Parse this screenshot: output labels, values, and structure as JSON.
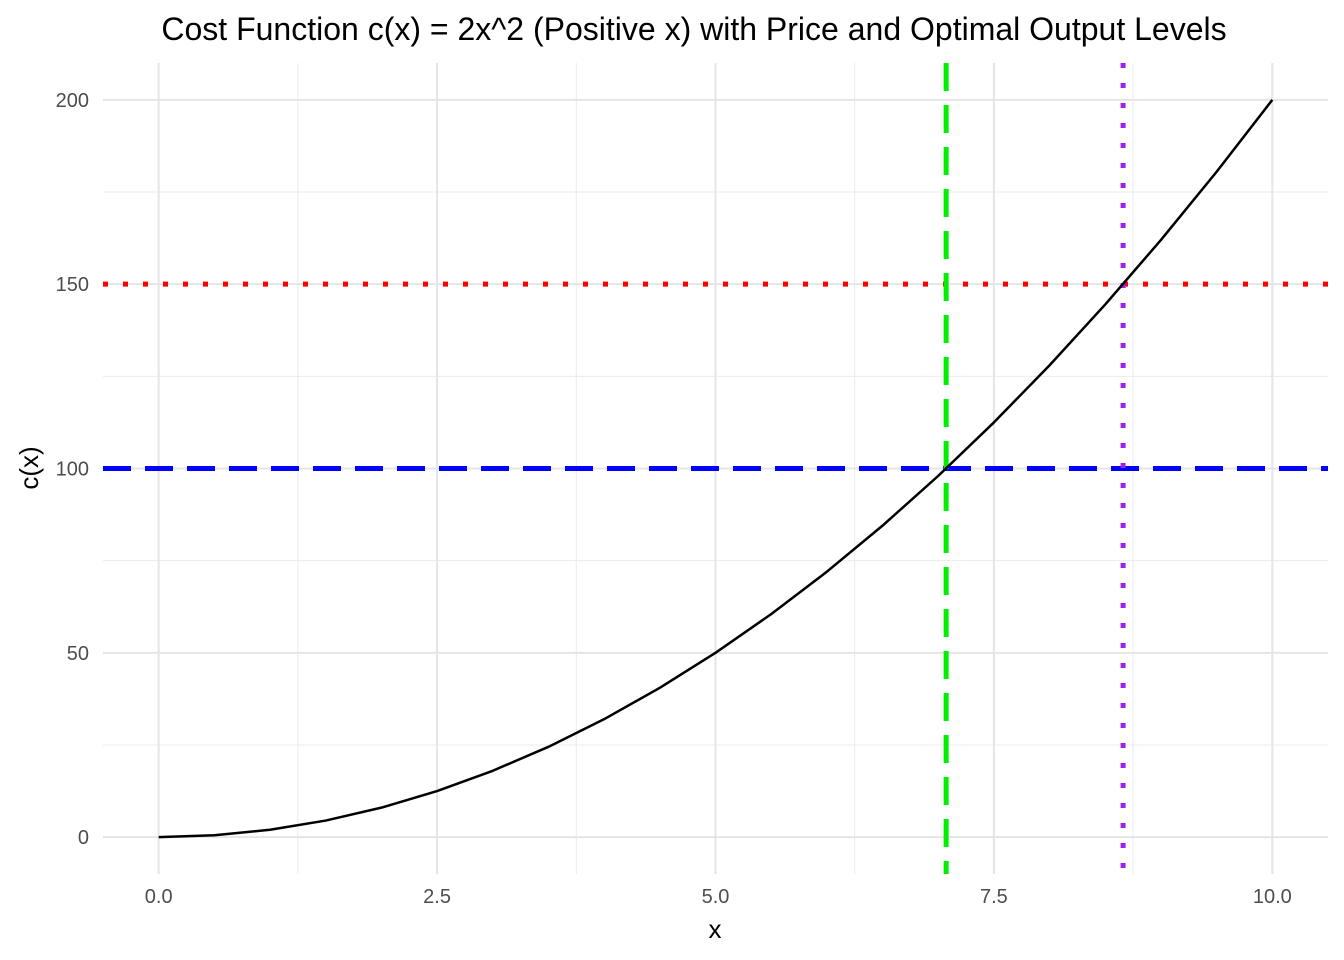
{
  "chart_data": {
    "type": "line",
    "title": "Cost Function c(x) = 2x^2 (Positive x) with Price and Optimal Output Levels",
    "xlabel": "x",
    "ylabel": "c(x)",
    "xlim": [
      -0.5,
      10.5
    ],
    "ylim": [
      -10,
      210
    ],
    "x_ticks": [
      0,
      2.5,
      5,
      7.5,
      10
    ],
    "x_tick_labels": [
      "0.0",
      "2.5",
      "5.0",
      "7.5",
      "10.0"
    ],
    "y_ticks": [
      0,
      50,
      100,
      150,
      200
    ],
    "y_tick_labels": [
      "0",
      "50",
      "100",
      "150",
      "200"
    ],
    "x_minor_ticks": [
      1.25,
      3.75,
      6.25,
      8.75
    ],
    "y_minor_ticks": [
      25,
      75,
      125,
      175
    ],
    "grid": true,
    "legend": "none",
    "series": [
      {
        "function": "2x^2",
        "x": [
          0,
          0.5,
          1,
          1.5,
          2,
          2.5,
          3,
          3.5,
          4,
          4.5,
          5,
          5.5,
          6,
          6.5,
          7,
          7.5,
          8,
          8.5,
          9,
          9.5,
          10
        ],
        "values": [
          0,
          0.5,
          2,
          4.5,
          8,
          12.5,
          18,
          24.5,
          32,
          40.5,
          50,
          60.5,
          72,
          84.5,
          98,
          112.5,
          128,
          144.5,
          162,
          180.5,
          200
        ],
        "color": "#000000"
      }
    ],
    "hlines": [
      {
        "y": 100,
        "color": "#0000ff",
        "style": "dashed"
      },
      {
        "y": 150,
        "color": "#ff0000",
        "style": "dotted"
      }
    ],
    "vlines": [
      {
        "x": 7.071,
        "color": "#00ee00",
        "style": "dashed"
      },
      {
        "x": 8.66,
        "color": "#a020f0",
        "style": "dotted"
      }
    ]
  }
}
